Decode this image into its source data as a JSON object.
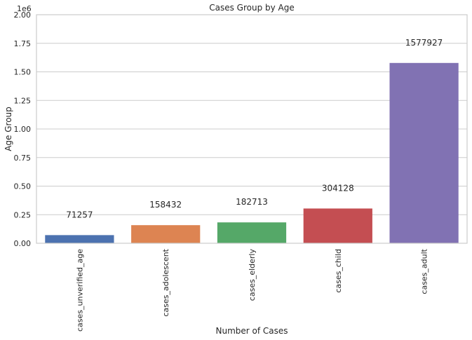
{
  "chart_data": {
    "type": "bar",
    "title": "Cases Group by Age",
    "xlabel": "Number of Cases",
    "ylabel": "Age Group",
    "y_offset_label": "1e6",
    "y_scale": 1000000,
    "ylim": [
      0,
      2000000
    ],
    "yticks": [
      0,
      250000,
      500000,
      750000,
      1000000,
      1250000,
      1500000,
      1750000,
      2000000
    ],
    "ytick_labels": [
      "0.00",
      "0.25",
      "0.50",
      "0.75",
      "1.00",
      "1.25",
      "1.50",
      "1.75",
      "2.00"
    ],
    "categories": [
      "cases_unverified_age",
      "cases_adolescent",
      "cases_elderly",
      "cases_child",
      "cases_adult"
    ],
    "values": [
      71257,
      158432,
      182713,
      304128,
      1577927
    ],
    "data_labels": [
      "71257",
      "158432",
      "182713",
      "304128",
      "1577927"
    ],
    "colors": [
      "#4c72b0",
      "#dd8452",
      "#55a868",
      "#c44e52",
      "#8172b3"
    ],
    "grid": true,
    "grid_axis": "y",
    "legend": "none"
  }
}
